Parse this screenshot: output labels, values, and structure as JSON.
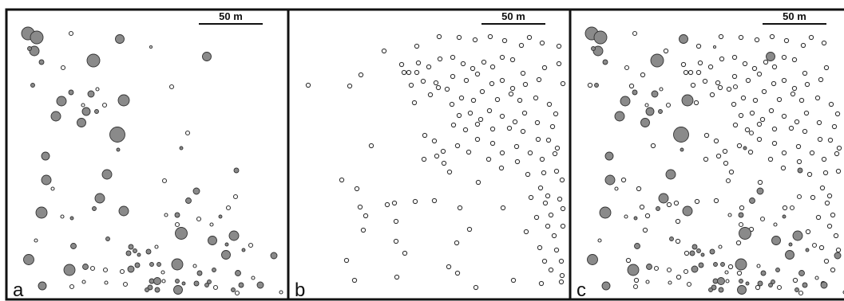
{
  "figure": {
    "panels": [
      {
        "id": "a",
        "letter": "a",
        "scale_label": "50 m",
        "content": "gray-and-small-open"
      },
      {
        "id": "b",
        "letter": "b",
        "scale_label": "50 m",
        "content": "open-only"
      },
      {
        "id": "c",
        "letter": "c",
        "scale_label": "50 m",
        "content": "combined"
      }
    ],
    "colors": {
      "frame": "#111111",
      "gray_fill": "#8a8a8a",
      "symbol_outline": "#333333",
      "background": "#ffffff"
    },
    "legend_semantics": {
      "gray-circle-icon": "filled gray circle (size varies)",
      "open-circle-icon": "open white circle"
    }
  }
}
